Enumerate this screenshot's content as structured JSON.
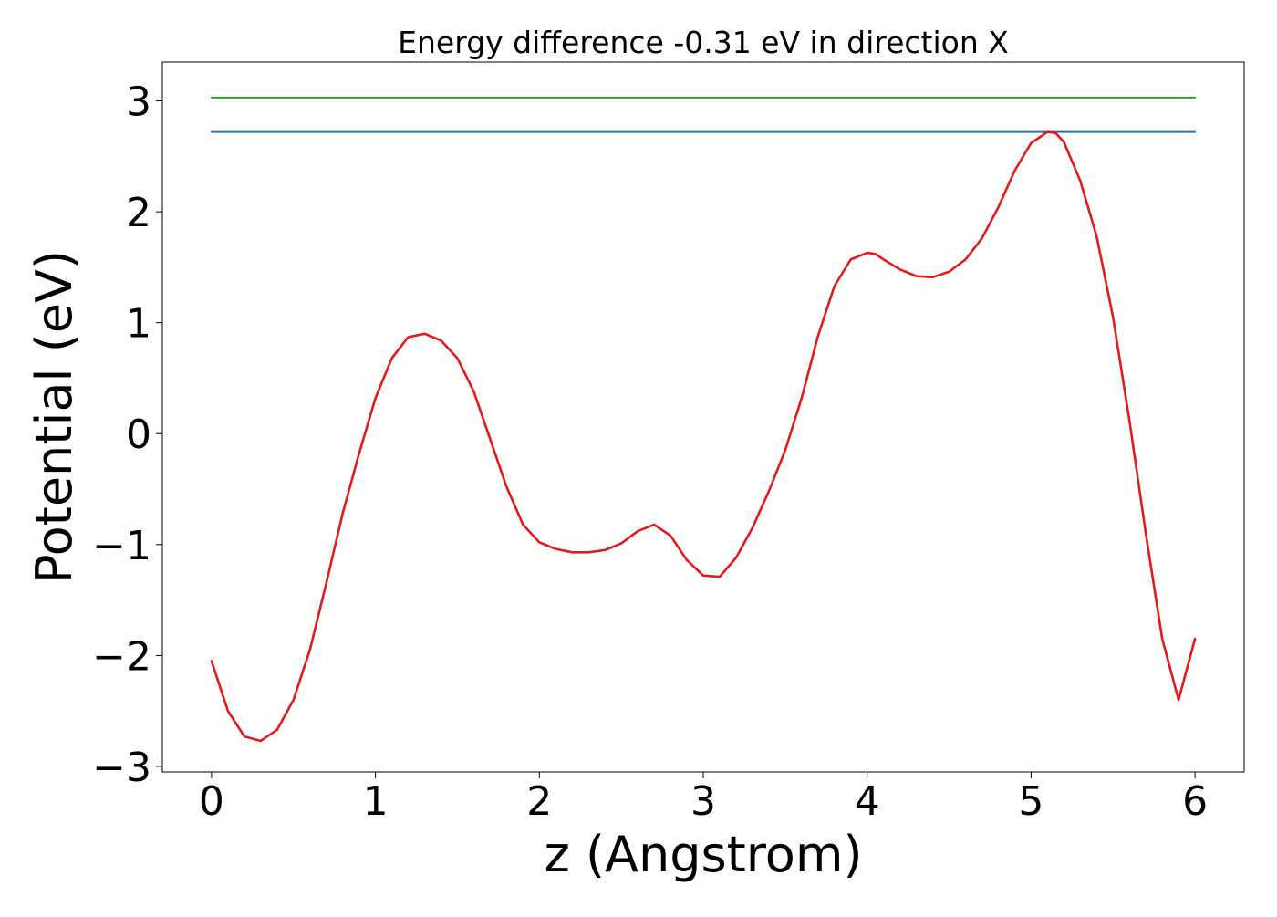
{
  "chart_data": {
    "type": "line",
    "title": "Energy difference -0.31 eV in direction X",
    "xlabel": "z (Angstrom)",
    "ylabel": "Potential (eV)",
    "xlim": [
      -0.3,
      6.3
    ],
    "ylim": [
      -3.05,
      3.35
    ],
    "xticks": [
      0,
      1,
      2,
      3,
      4,
      5,
      6
    ],
    "xtick_labels": [
      "0",
      "1",
      "2",
      "3",
      "4",
      "5",
      "6"
    ],
    "yticks": [
      -3,
      -2,
      -1,
      0,
      1,
      2,
      3
    ],
    "ytick_labels": [
      "−3",
      "−2",
      "−1",
      "0",
      "1",
      "2",
      "3"
    ],
    "grid": false,
    "colors": {
      "potential": "#e31a1c",
      "line_low": "#1f78b4",
      "line_high": "#33a02c",
      "frame": "#000000"
    },
    "series": [
      {
        "key": "potential",
        "x": [
          0,
          0.1,
          0.2,
          0.3,
          0.4,
          0.5,
          0.6,
          0.7,
          0.8,
          0.9,
          1.0,
          1.1,
          1.2,
          1.3,
          1.4,
          1.5,
          1.6,
          1.7,
          1.8,
          1.9,
          2.0,
          2.1,
          2.2,
          2.3,
          2.4,
          2.5,
          2.6,
          2.7,
          2.8,
          2.9,
          3.0,
          3.1,
          3.2,
          3.3,
          3.4,
          3.5,
          3.6,
          3.7,
          3.8,
          3.9,
          4.0,
          4.05,
          4.1,
          4.2,
          4.3,
          4.4,
          4.5,
          4.6,
          4.7,
          4.8,
          4.9,
          5.0,
          5.1,
          5.15,
          5.2,
          5.3,
          5.4,
          5.5,
          5.6,
          5.7,
          5.8,
          5.9,
          6.0
        ],
        "y": [
          -2.05,
          -2.5,
          -2.73,
          -2.77,
          -2.67,
          -2.4,
          -1.95,
          -1.35,
          -0.72,
          -0.18,
          0.32,
          0.68,
          0.87,
          0.9,
          0.84,
          0.68,
          0.38,
          -0.05,
          -0.48,
          -0.82,
          -0.98,
          -1.04,
          -1.07,
          -1.07,
          -1.05,
          -0.99,
          -0.88,
          -0.82,
          -0.92,
          -1.14,
          -1.28,
          -1.29,
          -1.12,
          -0.85,
          -0.52,
          -0.15,
          0.32,
          0.88,
          1.33,
          1.57,
          1.63,
          1.62,
          1.57,
          1.48,
          1.42,
          1.41,
          1.46,
          1.57,
          1.76,
          2.04,
          2.37,
          2.62,
          2.72,
          2.71,
          2.63,
          2.28,
          1.78,
          1.05,
          0.12,
          -0.9,
          -1.85,
          -2.4,
          -1.85
        ]
      },
      {
        "key": "line_low",
        "x": [
          0,
          6
        ],
        "y": [
          2.72,
          2.72
        ]
      },
      {
        "key": "line_high",
        "x": [
          0,
          6
        ],
        "y": [
          3.03,
          3.03
        ]
      }
    ]
  }
}
